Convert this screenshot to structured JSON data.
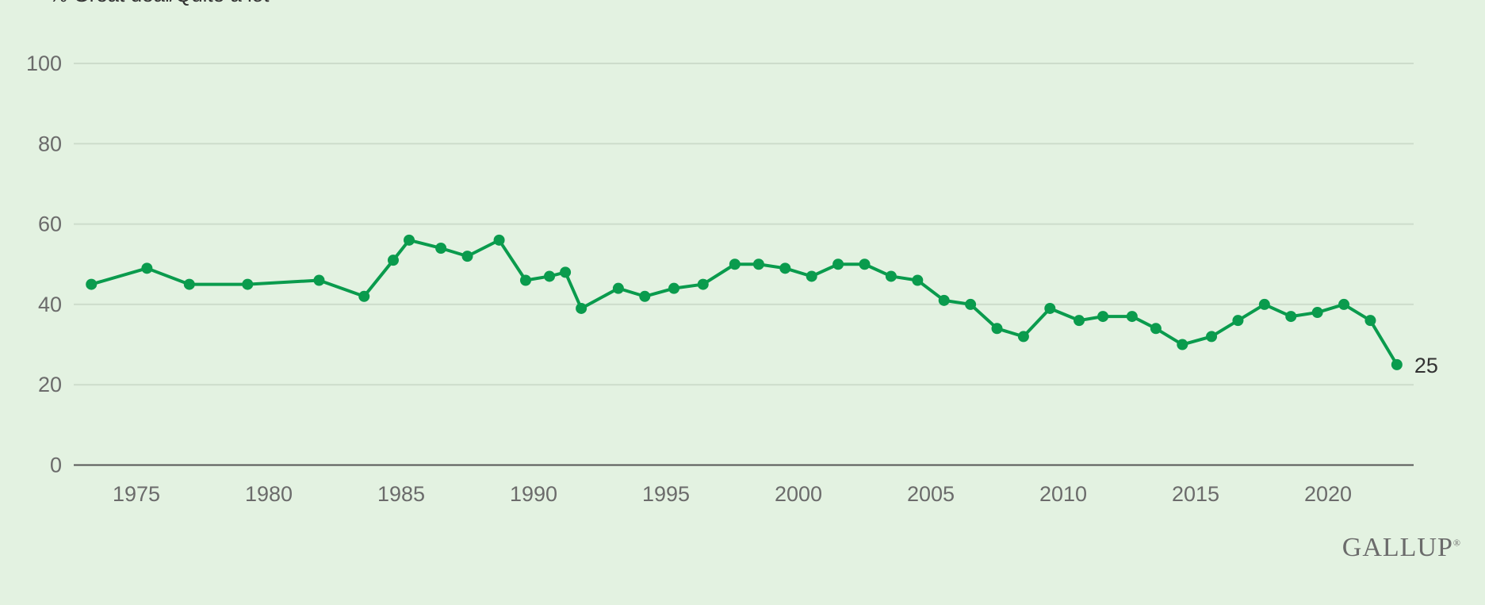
{
  "chart_data": {
    "type": "line",
    "title": "",
    "subtitle": "% Great deal/Quite a lot",
    "xlabel": "",
    "ylabel": "",
    "xlim": [
      1972.8,
      2023.5
    ],
    "ylim": [
      0,
      100
    ],
    "yticks": [
      "0",
      "20",
      "40",
      "60",
      "80",
      "100"
    ],
    "xticks": [
      "1975",
      "1980",
      "1985",
      "1990",
      "1995",
      "2000",
      "2005",
      "2010",
      "2015",
      "2020"
    ],
    "grid": true,
    "line_color": "#0a9b4d",
    "end_label": "25",
    "x": [
      1973.3,
      1975.4,
      1977.0,
      1979.2,
      1981.9,
      1983.6,
      1984.7,
      1985.3,
      1986.5,
      1987.5,
      1988.7,
      1989.7,
      1990.6,
      1991.2,
      1991.8,
      1993.2,
      1994.2,
      1995.3,
      1996.4,
      1997.6,
      1998.5,
      1999.5,
      2000.5,
      2001.5,
      2002.5,
      2003.5,
      2004.5,
      2005.5,
      2006.5,
      2007.5,
      2008.5,
      2009.5,
      2010.6,
      2011.5,
      2012.6,
      2013.5,
      2014.5,
      2015.6,
      2016.6,
      2017.6,
      2018.6,
      2019.6,
      2020.6,
      2021.6,
      2022.6
    ],
    "y": [
      45,
      49,
      45,
      45,
      46,
      42,
      51,
      56,
      54,
      52,
      56,
      46,
      47,
      48,
      39,
      44,
      42,
      44,
      45,
      50,
      50,
      49,
      47,
      50,
      50,
      47,
      46,
      41,
      40,
      34,
      32,
      39,
      36,
      37,
      37,
      34,
      30,
      32,
      36,
      40,
      37,
      38,
      40,
      36,
      25
    ]
  },
  "brand": "GALLUP",
  "brand_mark": "®"
}
